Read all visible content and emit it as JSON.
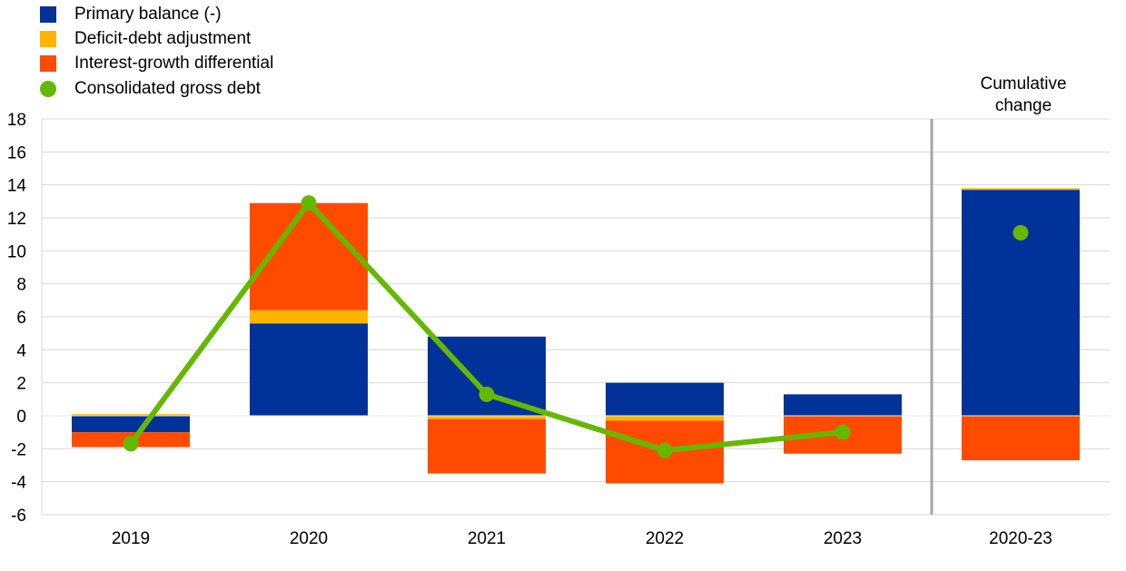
{
  "chart_data": {
    "type": "bar",
    "categories": [
      "2019",
      "2020",
      "2021",
      "2022",
      "2023",
      "2020-23"
    ],
    "series": [
      {
        "name": "Primary balance (-)",
        "color": "#003299",
        "values": [
          -1.0,
          5.6,
          4.8,
          2.0,
          1.3,
          13.7
        ]
      },
      {
        "name": "Deficit-debt adjustment",
        "color": "#FFB400",
        "values": [
          0.1,
          0.8,
          -0.2,
          -0.3,
          0.0,
          0.1
        ]
      },
      {
        "name": "Interest-growth differential",
        "color": "#FF4B00",
        "values": [
          -0.9,
          6.5,
          -3.3,
          -3.8,
          -2.3,
          -2.7
        ]
      }
    ],
    "line_series": {
      "name": "Consolidated gross debt",
      "color": "#65B800",
      "values": [
        -1.7,
        12.9,
        1.3,
        -2.1,
        -1.0,
        11.1
      ],
      "connected_points": 5
    },
    "ylim": [
      -6,
      18
    ],
    "yticks": [
      "18",
      "16",
      "14",
      "12",
      "10",
      "8",
      "6",
      "4",
      "2",
      "0",
      "-2",
      "-4",
      "-6"
    ],
    "annotation": {
      "line1": "Cumulative",
      "line2": "change"
    },
    "grid": true,
    "legend_position": "top-left"
  }
}
